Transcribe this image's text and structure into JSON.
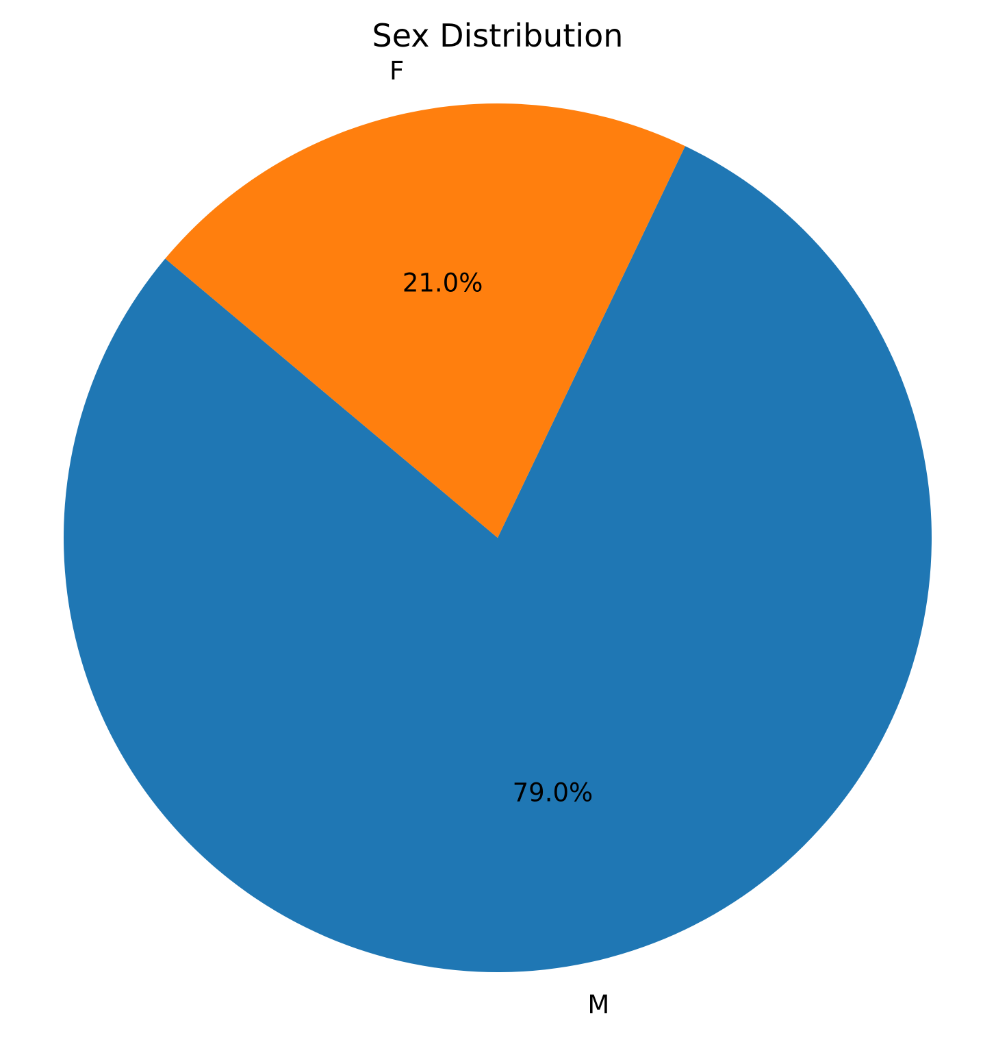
{
  "chart_data": {
    "type": "pie",
    "title": "Sex Distribution",
    "slices": [
      {
        "label": "M",
        "value": 79.0,
        "pct_label": "79.0%",
        "color": "#1f77b4"
      },
      {
        "label": "F",
        "value": 21.0,
        "pct_label": "21.0%",
        "color": "#ff7f0e"
      }
    ],
    "start_angle_deg": 140,
    "direction": "counterclockwise",
    "legend": "none"
  }
}
